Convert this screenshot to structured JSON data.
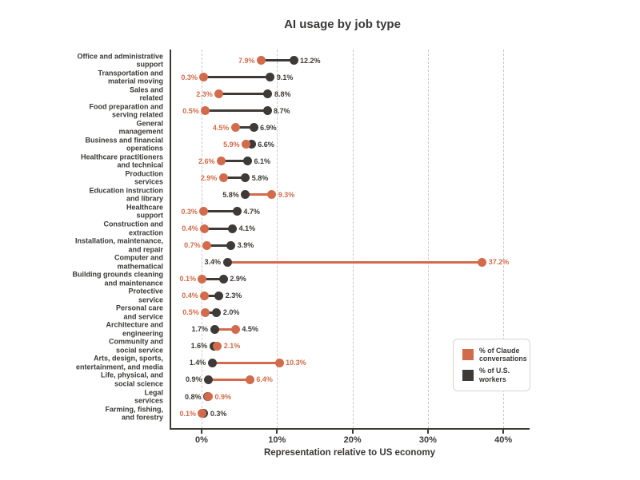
{
  "title": "AI usage by job type",
  "x_axis": {
    "label": "Representation relative to US economy",
    "tick_labels": [
      "0%",
      "10%",
      "20%",
      "30%",
      "40%"
    ]
  },
  "legend": {
    "items": [
      {
        "label": "% of Claude conversations",
        "color_key": "claude"
      },
      {
        "label": "% of U.S. workers",
        "color_key": "workers"
      }
    ]
  },
  "colors": {
    "claude": "#d26b4b",
    "workers": "#3d3a37",
    "grid": "#ccc9c5",
    "axis": "#3d3a37",
    "text": "#3a3836",
    "background": "#ffffff",
    "legend_border": "#d8d5d1"
  },
  "chart_data": {
    "type": "dumbbell",
    "title": "AI usage by job type",
    "xlabel": "Representation relative to US economy",
    "x_ticks": [
      0,
      10,
      20,
      30,
      40
    ],
    "x_tick_labels": [
      "0%",
      "10%",
      "20%",
      "30%",
      "40%"
    ],
    "xlim": [
      -4.2,
      43.5
    ],
    "grid": "vertical-dashed",
    "legend_position": "lower-right",
    "categories": [
      "Office and administrative support",
      "Transportation and material moving",
      "Sales and related",
      "Food preparation and serving related",
      "General management",
      "Business and financial operations",
      "Healthcare practitioners and technical",
      "Production services",
      "Education instruction and library",
      "Healthcare support",
      "Construction and extraction",
      "Installation, maintenance, and repair",
      "Computer and mathematical",
      "Building grounds cleaning and maintenance",
      "Protective service",
      "Personal care and service",
      "Architecture and engineering",
      "Community and social service",
      "Arts, design, sports, entertainment, and media",
      "Life, physical, and social science",
      "Legal services",
      "Farming, fishing, and forestry"
    ],
    "category_lines": [
      [
        "Office and administrative",
        "support"
      ],
      [
        "Transportation and",
        "material moving"
      ],
      [
        "Sales and",
        "related"
      ],
      [
        "Food preparation and",
        "serving related"
      ],
      [
        "General",
        "management"
      ],
      [
        "Business and financial",
        "operations"
      ],
      [
        "Healthcare practitioners",
        "and technical"
      ],
      [
        "Production",
        "services"
      ],
      [
        "Education instruction",
        "and library"
      ],
      [
        "Healthcare",
        "support"
      ],
      [
        "Construction and",
        "extraction"
      ],
      [
        "Installation, maintenance,",
        "and repair"
      ],
      [
        "Computer and",
        "mathematical"
      ],
      [
        "Building grounds cleaning",
        "and maintenance"
      ],
      [
        "Protective",
        "service"
      ],
      [
        "Personal care",
        "and service"
      ],
      [
        "Architecture and",
        "engineering"
      ],
      [
        "Community and",
        "social service"
      ],
      [
        "Arts, design, sports,",
        "entertainment, and media"
      ],
      [
        "Life, physical, and",
        "social science"
      ],
      [
        "Legal",
        "services"
      ],
      [
        "Farming, fishing,",
        "and forestry"
      ]
    ],
    "series": [
      {
        "name": "% of Claude conversations",
        "color_key": "claude",
        "values": [
          7.9,
          0.3,
          2.3,
          0.5,
          4.5,
          5.9,
          2.6,
          2.9,
          9.3,
          0.3,
          0.4,
          0.7,
          37.2,
          0.1,
          0.4,
          0.5,
          4.5,
          2.1,
          10.3,
          6.4,
          0.9,
          0.1
        ]
      },
      {
        "name": "% of U.S. workers",
        "color_key": "workers",
        "values": [
          12.2,
          9.1,
          8.8,
          8.7,
          6.9,
          6.6,
          6.1,
          5.8,
          5.8,
          4.7,
          4.1,
          3.9,
          3.4,
          2.9,
          2.3,
          2.0,
          1.7,
          1.6,
          1.4,
          0.9,
          0.8,
          0.3
        ]
      }
    ],
    "value_label_format": "{value}%",
    "value_label_overrides": [
      {
        "row_index": 16,
        "side": "right",
        "color_key": "workers"
      }
    ]
  }
}
